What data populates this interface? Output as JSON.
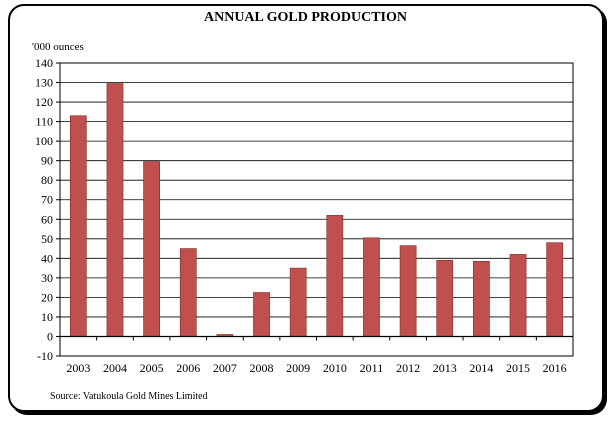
{
  "chart_data": {
    "type": "bar",
    "title": "ANNUAL GOLD PRODUCTION",
    "unit_label": "'000 ounces",
    "xlabel": "",
    "ylabel": "",
    "categories": [
      "2003",
      "2004",
      "2005",
      "2006",
      "2007",
      "2008",
      "2009",
      "2010",
      "2011",
      "2012",
      "2013",
      "2014",
      "2015",
      "2016"
    ],
    "values": [
      113,
      129.5,
      89.5,
      45,
      1,
      22.5,
      35,
      62,
      50.5,
      46.5,
      39,
      38.5,
      42,
      48
    ],
    "ylim": [
      -10,
      140
    ],
    "ytick_step": 10,
    "grid": true,
    "legend": "none",
    "bar_color": "#c0504d",
    "bar_edge_color": "#7f2a27"
  },
  "footer": {
    "source": "Source:  Vatukoula Gold Mines Limited"
  }
}
